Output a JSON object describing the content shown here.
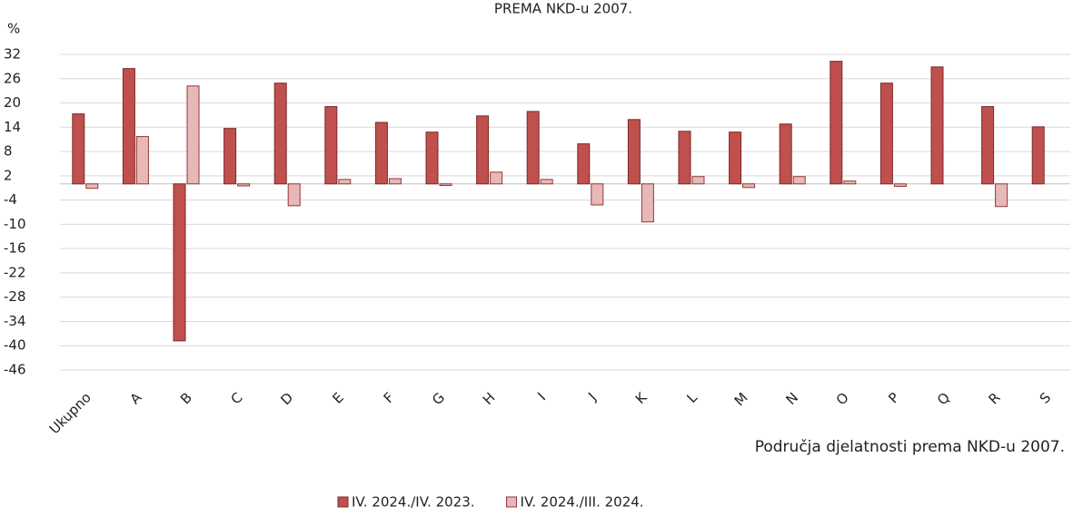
{
  "chart_data": {
    "type": "bar",
    "title": "PREMA NKD-u 2007.",
    "y_label": "%",
    "x_label": "Područja djelatnosti prema NKD-u 2007.",
    "categories": [
      "Ukupno",
      "A",
      "B",
      "C",
      "D",
      "E",
      "F",
      "G",
      "H",
      "I",
      "J",
      "K",
      "L",
      "M",
      "N",
      "O",
      "P",
      "Q",
      "R",
      "S"
    ],
    "series": [
      {
        "name": "IV. 2024./IV. 2023.",
        "color": "#c0504d",
        "stroke": "#7b2a28",
        "values": [
          17.3,
          28.5,
          -38.8,
          13.7,
          24.9,
          19.1,
          15.2,
          12.8,
          16.8,
          17.9,
          9.9,
          15.9,
          13.0,
          12.8,
          14.8,
          30.3,
          24.9,
          28.9,
          19.1,
          14.1
        ]
      },
      {
        "name": "IV. 2024./III. 2024.",
        "color": "#e6b9b8",
        "stroke": "#953735",
        "values": [
          -1.1,
          11.7,
          24.2,
          -0.5,
          -5.4,
          1.1,
          1.3,
          -0.4,
          2.9,
          1.1,
          -5.2,
          -9.4,
          1.8,
          -0.9,
          1.8,
          0.7,
          -0.6,
          null,
          -5.6,
          null
        ]
      }
    ],
    "ylim": [
      -46,
      32
    ],
    "yticks": [
      32,
      26,
      20,
      14,
      8,
      2,
      -4,
      -10,
      -16,
      -22,
      -28,
      -34,
      -40,
      -46
    ],
    "grid": true
  }
}
